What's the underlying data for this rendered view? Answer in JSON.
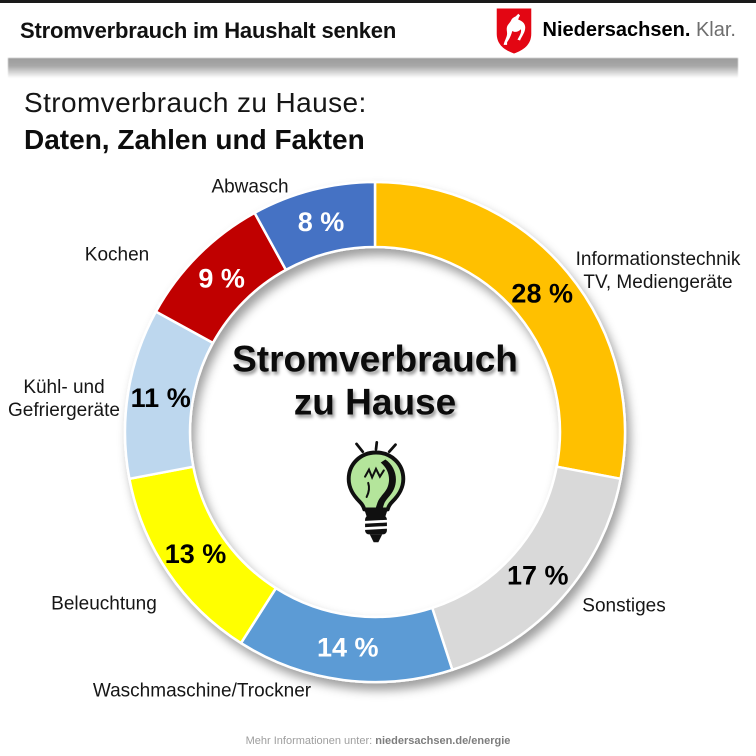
{
  "header": {
    "title": "Stromverbrauch im Haushalt senken",
    "brand": "Niedersachsen.",
    "brand_suffix": "Klar.",
    "brand_shield_color": "#E30613"
  },
  "intro": {
    "line1": "Stromverbrauch zu Hause:",
    "line2": "Daten, Zahlen und Fakten"
  },
  "chart_data": {
    "type": "pie",
    "subtype": "donut",
    "direction": "clockwise",
    "start_angle_deg": 0,
    "center_title_lines": [
      "Stromverbrauch",
      "zu Hause"
    ],
    "center_icon": "lightbulb",
    "gap_color": "#FFFFFF",
    "segments": [
      {
        "label": "Informationstechnik TV, Mediengeräte",
        "label_lines": [
          "Informationstechnik",
          "TV, Mediengeräte"
        ],
        "value": 28,
        "value_label": "28 %",
        "color": "#FFC000",
        "value_text_color": "#000000"
      },
      {
        "label": "Sonstiges",
        "label_lines": [
          "Sonstiges"
        ],
        "value": 17,
        "value_label": "17 %",
        "color": "#D9D9D9",
        "value_text_color": "#000000"
      },
      {
        "label": "Waschmaschine/Trockner",
        "label_lines": [
          "Waschmaschine/Trockner"
        ],
        "value": 14,
        "value_label": "14 %",
        "color": "#5B9BD5",
        "value_text_color": "#FFFFFF"
      },
      {
        "label": "Beleuchtung",
        "label_lines": [
          "Beleuchtung"
        ],
        "value": 13,
        "value_label": "13 %",
        "color": "#FFFF00",
        "value_text_color": "#000000"
      },
      {
        "label": "Kühl- und Gefriergeräte",
        "label_lines": [
          "Kühl- und",
          "Gefriergeräte"
        ],
        "value": 11,
        "value_label": "11 %",
        "color": "#BDD7EE",
        "value_text_color": "#000000"
      },
      {
        "label": "Kochen",
        "label_lines": [
          "Kochen"
        ],
        "value": 9,
        "value_label": "9 %",
        "color": "#C00000",
        "value_text_color": "#FFFFFF"
      },
      {
        "label": "Abwasch",
        "label_lines": [
          "Abwasch"
        ],
        "value": 8,
        "value_label": "8 %",
        "color": "#4472C4",
        "value_text_color": "#FFFFFF"
      }
    ]
  },
  "footer": {
    "prefix": "Mehr Informationen unter:",
    "link": "niedersachsen.de/energie"
  }
}
